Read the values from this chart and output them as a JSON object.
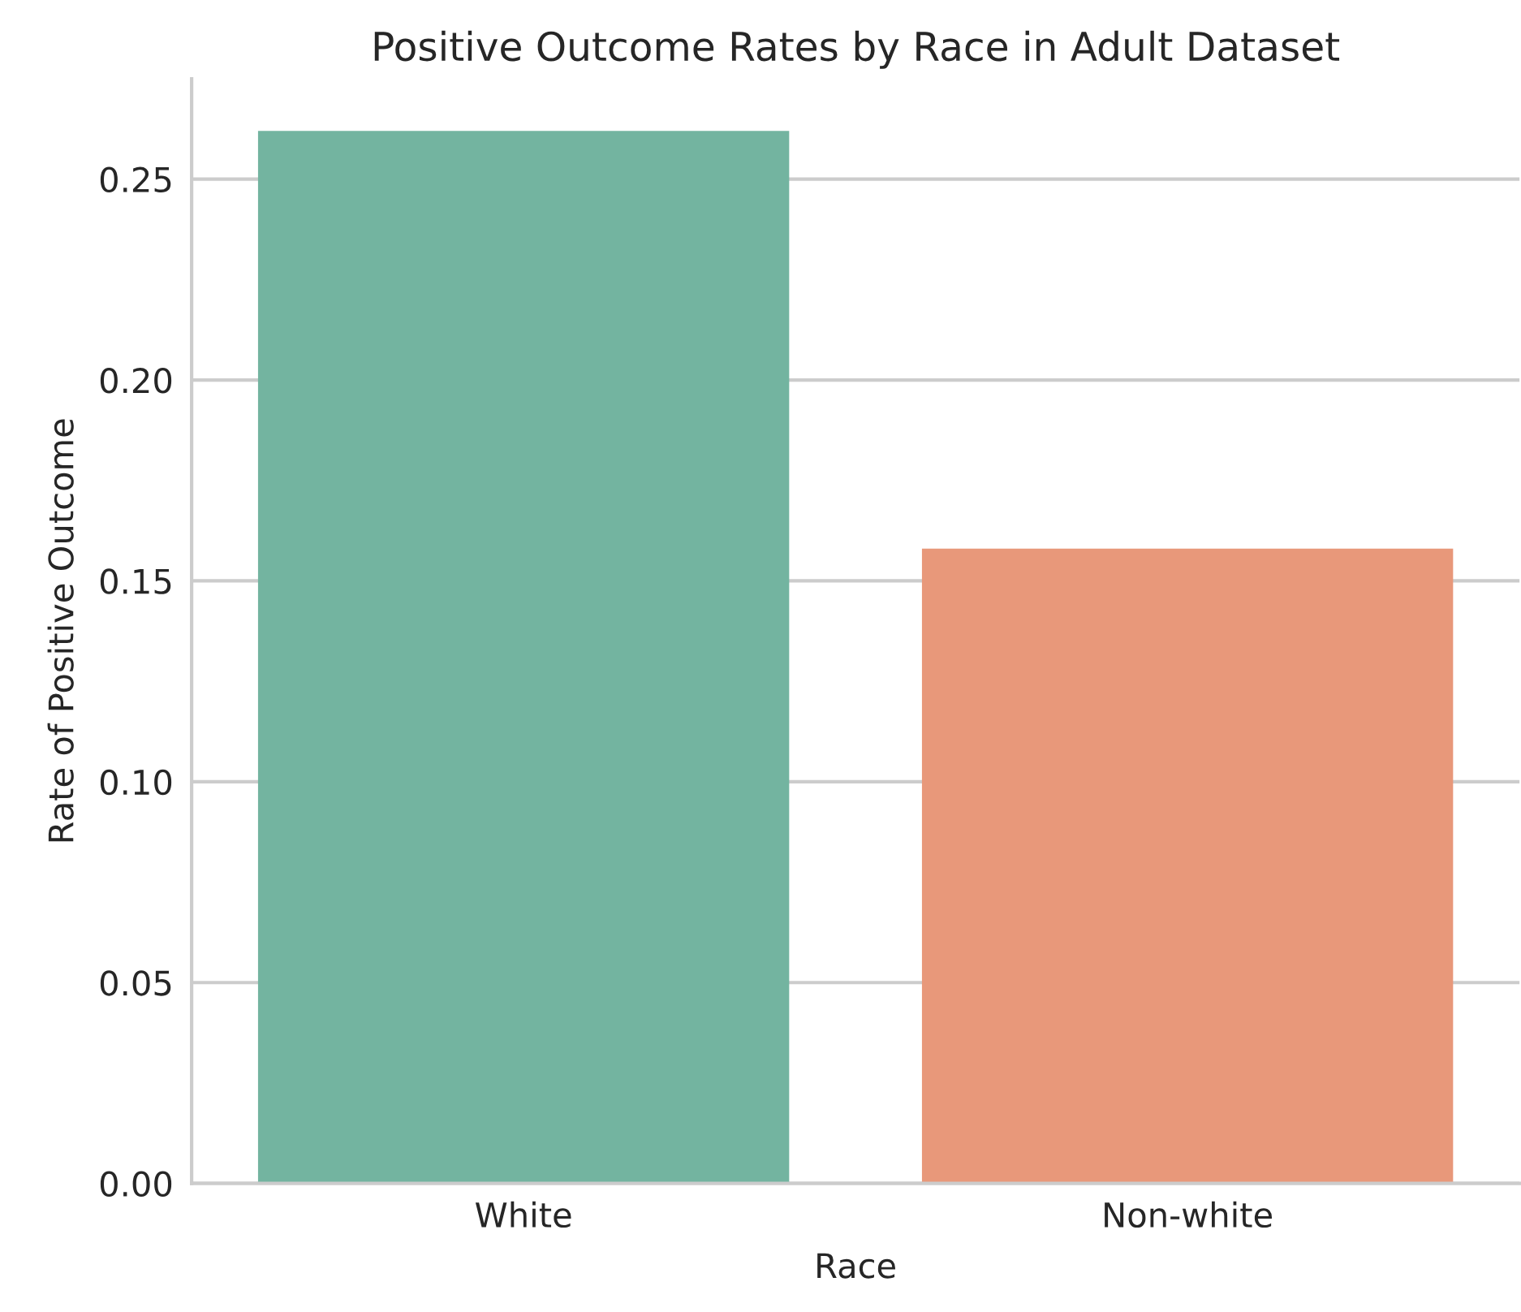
{
  "chart_data": {
    "type": "bar",
    "title": "Positive Outcome Rates by Race in Adult Dataset",
    "xlabel": "Race",
    "ylabel": "Rate of Positive Outcome",
    "categories": [
      "White",
      "Non-white"
    ],
    "values": [
      0.262,
      0.158
    ],
    "colors": [
      "#73b4a0",
      "#e8987a"
    ],
    "ylim": [
      0,
      0.275
    ],
    "yticks": [
      {
        "value": 0,
        "label": "0.00"
      },
      {
        "value": 0.05,
        "label": "0.05"
      },
      {
        "value": 0.1,
        "label": "0.10"
      },
      {
        "value": 0.15,
        "label": "0.15"
      },
      {
        "value": 0.2,
        "label": "0.20"
      },
      {
        "value": 0.25,
        "label": "0.25"
      }
    ],
    "grid": "y",
    "legend": false
  }
}
